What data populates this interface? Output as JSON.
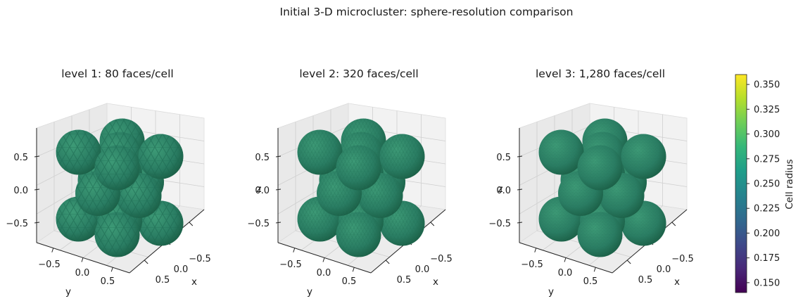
{
  "figure": {
    "suptitle": "Initial 3-D microcluster: sphere-resolution comparison"
  },
  "colors": {
    "cell_fill": "#2a7d63",
    "cell_highlight": "#3d9a76",
    "cell_shadow": "#16543f",
    "colormap": [
      "#440154",
      "#482878",
      "#3e4989",
      "#31688e",
      "#26828e",
      "#1f9e89",
      "#35b779",
      "#6ece58",
      "#b5de2b",
      "#fde725"
    ]
  },
  "chart_data": [
    {
      "type": "scatter",
      "subtype": "3d-spheres",
      "title": "level 1: 80 faces/cell",
      "faces_per_cell": 80,
      "zlabel": "",
      "xlabel": "x",
      "ylabel": "y",
      "z_ticks": [
        "0.5",
        "0.0",
        "−0.5"
      ],
      "x_ticks": [
        "−0.5",
        "0.0",
        "0.5"
      ],
      "y_ticks": [
        "−0.5",
        "0.0",
        "0.5"
      ],
      "xlim": [
        -0.8,
        0.8
      ],
      "ylim": [
        -0.8,
        0.8
      ],
      "zlim": [
        -0.8,
        0.8
      ],
      "cell_radius": 0.27,
      "cells": [
        {
          "x": -0.5,
          "y": -0.5,
          "z": 0.5
        },
        {
          "x": 0.0,
          "y": 0.0,
          "z": 0.5
        },
        {
          "x": 0.5,
          "y": 0.5,
          "z": 0.5
        },
        {
          "x": -0.5,
          "y": 0.5,
          "z": 0.5
        },
        {
          "x": 0.5,
          "y": -0.5,
          "z": 0.5
        },
        {
          "x": 0.0,
          "y": -0.5,
          "z": 0.0
        },
        {
          "x": -0.5,
          "y": 0.0,
          "z": 0.0
        },
        {
          "x": 0.5,
          "y": 0.0,
          "z": 0.0
        },
        {
          "x": 0.0,
          "y": 0.5,
          "z": 0.0
        },
        {
          "x": 0.0,
          "y": 0.0,
          "z": 0.2
        },
        {
          "x": -0.5,
          "y": -0.5,
          "z": -0.5
        },
        {
          "x": 0.5,
          "y": 0.5,
          "z": -0.5
        },
        {
          "x": -0.5,
          "y": 0.5,
          "z": -0.5
        },
        {
          "x": 0.5,
          "y": -0.5,
          "z": -0.5
        },
        {
          "x": 0.0,
          "y": 0.0,
          "z": -0.5
        }
      ]
    },
    {
      "type": "scatter",
      "subtype": "3d-spheres",
      "title": "level 2: 320 faces/cell",
      "faces_per_cell": 320,
      "zlabel": "z",
      "xlabel": "x",
      "ylabel": "y",
      "z_ticks": [
        "0.5",
        "0.0",
        "−0.5"
      ],
      "x_ticks": [
        "−0.5",
        "0.0",
        "0.5"
      ],
      "y_ticks": [
        "−0.5",
        "0.0",
        "0.5"
      ],
      "xlim": [
        -0.8,
        0.8
      ],
      "ylim": [
        -0.8,
        0.8
      ],
      "zlim": [
        -0.8,
        0.8
      ],
      "cell_radius": 0.27,
      "cells": [
        {
          "x": -0.5,
          "y": -0.5,
          "z": 0.5
        },
        {
          "x": 0.0,
          "y": 0.0,
          "z": 0.5
        },
        {
          "x": 0.5,
          "y": 0.5,
          "z": 0.5
        },
        {
          "x": -0.5,
          "y": 0.5,
          "z": 0.5
        },
        {
          "x": 0.5,
          "y": -0.5,
          "z": 0.5
        },
        {
          "x": 0.0,
          "y": -0.5,
          "z": 0.0
        },
        {
          "x": -0.5,
          "y": 0.0,
          "z": 0.0
        },
        {
          "x": 0.5,
          "y": 0.0,
          "z": 0.0
        },
        {
          "x": 0.0,
          "y": 0.5,
          "z": 0.0
        },
        {
          "x": 0.0,
          "y": 0.0,
          "z": 0.2
        },
        {
          "x": -0.5,
          "y": -0.5,
          "z": -0.5
        },
        {
          "x": 0.5,
          "y": 0.5,
          "z": -0.5
        },
        {
          "x": -0.5,
          "y": 0.5,
          "z": -0.5
        },
        {
          "x": 0.5,
          "y": -0.5,
          "z": -0.5
        },
        {
          "x": 0.0,
          "y": 0.0,
          "z": -0.5
        }
      ]
    },
    {
      "type": "scatter",
      "subtype": "3d-spheres",
      "title": "level 3: 1,280 faces/cell",
      "faces_per_cell": 1280,
      "zlabel": "z",
      "xlabel": "x",
      "ylabel": "y",
      "z_ticks": [
        "0.5",
        "0.0",
        "−0.5"
      ],
      "x_ticks": [
        "−0.5",
        "0.0",
        "0.5"
      ],
      "y_ticks": [
        "−0.5",
        "0.0",
        "0.5"
      ],
      "xlim": [
        -0.8,
        0.8
      ],
      "ylim": [
        -0.8,
        0.8
      ],
      "zlim": [
        -0.8,
        0.8
      ],
      "cell_radius": 0.27,
      "cells": [
        {
          "x": -0.5,
          "y": -0.5,
          "z": 0.5
        },
        {
          "x": 0.0,
          "y": 0.0,
          "z": 0.5
        },
        {
          "x": 0.5,
          "y": 0.5,
          "z": 0.5
        },
        {
          "x": -0.5,
          "y": 0.5,
          "z": 0.5
        },
        {
          "x": 0.5,
          "y": -0.5,
          "z": 0.5
        },
        {
          "x": 0.0,
          "y": -0.5,
          "z": 0.0
        },
        {
          "x": -0.5,
          "y": 0.0,
          "z": 0.0
        },
        {
          "x": 0.5,
          "y": 0.0,
          "z": 0.0
        },
        {
          "x": 0.0,
          "y": 0.5,
          "z": 0.0
        },
        {
          "x": 0.0,
          "y": 0.0,
          "z": 0.2
        },
        {
          "x": -0.5,
          "y": -0.5,
          "z": -0.5
        },
        {
          "x": 0.5,
          "y": 0.5,
          "z": -0.5
        },
        {
          "x": -0.5,
          "y": 0.5,
          "z": -0.5
        },
        {
          "x": 0.5,
          "y": -0.5,
          "z": -0.5
        },
        {
          "x": 0.0,
          "y": 0.0,
          "z": -0.5
        }
      ]
    },
    {
      "type": "heatmap",
      "subtype": "colorbar",
      "label": "Cell radius",
      "range": [
        0.14,
        0.36
      ],
      "ticks": [
        "0.350",
        "0.325",
        "0.300",
        "0.275",
        "0.250",
        "0.225",
        "0.200",
        "0.175",
        "0.150"
      ]
    }
  ]
}
